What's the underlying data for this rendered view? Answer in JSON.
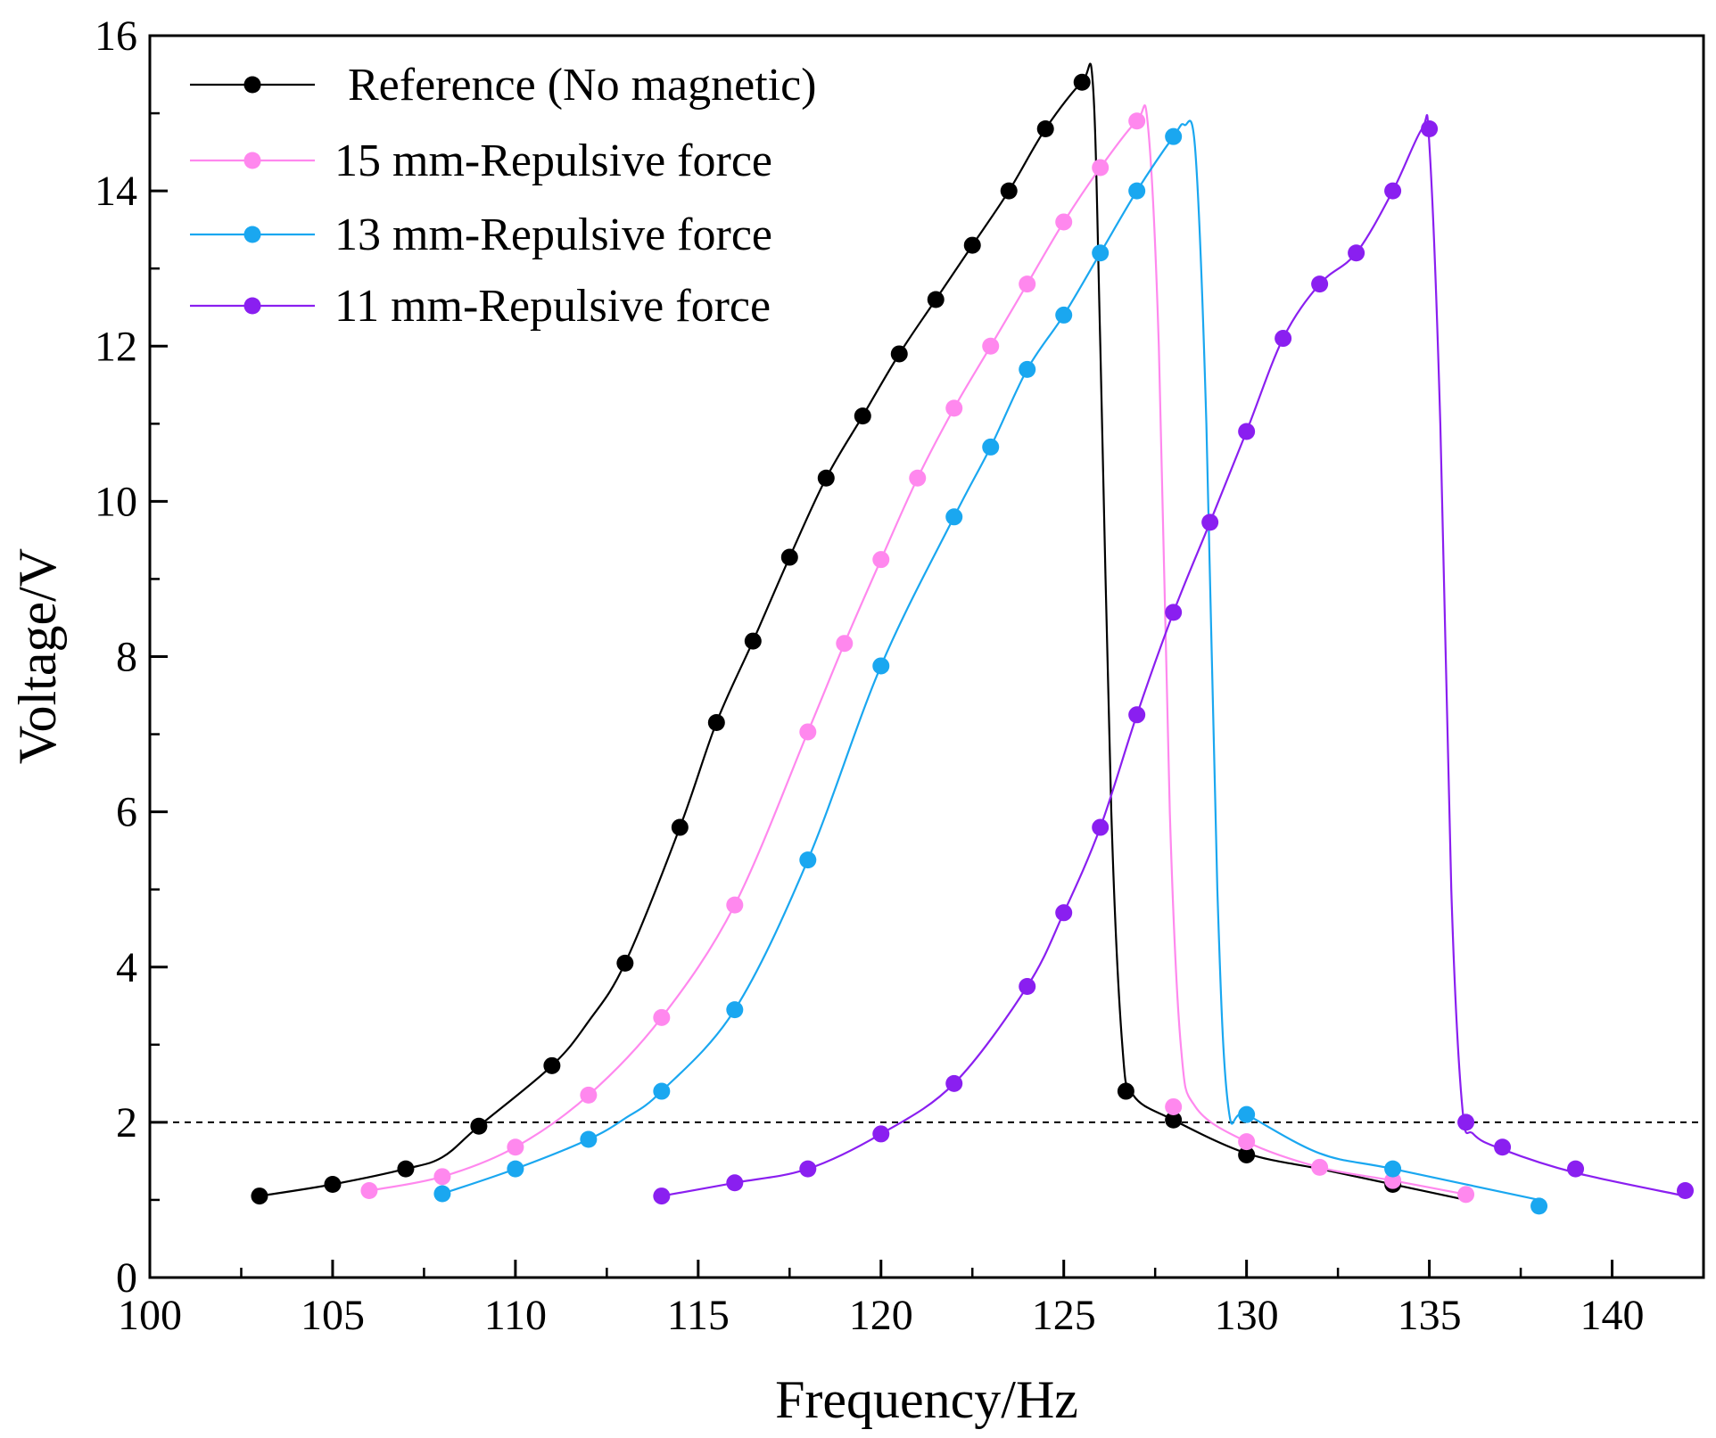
{
  "chart_data": {
    "type": "line",
    "xlabel": "Frequency/Hz",
    "ylabel": "Voltage/V",
    "xlim": [
      100,
      142.5
    ],
    "ylim": [
      0,
      16
    ],
    "x_ticks": [
      100,
      105,
      110,
      115,
      120,
      125,
      130,
      135,
      140
    ],
    "x_tick_labels": [
      "100",
      "105",
      "110",
      "115",
      "120",
      "125",
      "130",
      "135",
      "140"
    ],
    "y_ticks": [
      0,
      2,
      4,
      6,
      8,
      10,
      12,
      14,
      16
    ],
    "y_tick_labels": [
      "0",
      "2",
      "4",
      "6",
      "8",
      "10",
      "12",
      "14",
      "16"
    ],
    "grid": false,
    "legend_position": "top-left",
    "reference_line": {
      "y": 2,
      "style": "dashed",
      "color": "#000000"
    },
    "series": [
      {
        "name": "Reference (No magnetic)",
        "color": "#000000",
        "points": [
          [
            103,
            1.05
          ],
          [
            105,
            1.2
          ],
          [
            107,
            1.4
          ],
          [
            109,
            1.95
          ],
          [
            111,
            2.73
          ],
          [
            113,
            4.05
          ],
          [
            114.5,
            5.8
          ],
          [
            115.5,
            7.15
          ],
          [
            116.5,
            8.2
          ],
          [
            117.5,
            9.28
          ],
          [
            118.5,
            10.3
          ],
          [
            119.5,
            11.1
          ],
          [
            120.5,
            11.9
          ],
          [
            121.5,
            12.6
          ],
          [
            122.5,
            13.3
          ],
          [
            123.5,
            14.0
          ],
          [
            124.5,
            14.8
          ],
          [
            125.5,
            15.4
          ],
          [
            126.7,
            2.4
          ],
          [
            128,
            2.03
          ],
          [
            130,
            1.58
          ],
          [
            134,
            1.2
          ]
        ],
        "curve": [
          [
            103,
            1.05
          ],
          [
            105,
            1.2
          ],
          [
            107,
            1.4
          ],
          [
            108,
            1.55
          ],
          [
            109,
            1.95
          ],
          [
            111,
            2.73
          ],
          [
            112,
            3.3
          ],
          [
            113,
            4.05
          ],
          [
            114.5,
            5.8
          ],
          [
            115.5,
            7.15
          ],
          [
            116.5,
            8.2
          ],
          [
            117.5,
            9.28
          ],
          [
            118.5,
            10.3
          ],
          [
            119.5,
            11.1
          ],
          [
            120.5,
            11.9
          ],
          [
            121.5,
            12.6
          ],
          [
            122.5,
            13.3
          ],
          [
            123.5,
            14.0
          ],
          [
            124.5,
            14.8
          ],
          [
            125.5,
            15.4
          ],
          [
            125.8,
            15.35
          ],
          [
            126.0,
            12.0
          ],
          [
            126.3,
            6.0
          ],
          [
            126.6,
            3.0
          ],
          [
            126.9,
            2.35
          ],
          [
            128,
            2.03
          ],
          [
            130,
            1.6
          ],
          [
            132,
            1.4
          ],
          [
            134,
            1.2
          ],
          [
            136,
            1.0
          ]
        ]
      },
      {
        "name": "15 mm-Repulsive force",
        "color": "#ff88ee",
        "points": [
          [
            106,
            1.12
          ],
          [
            108,
            1.3
          ],
          [
            110,
            1.68
          ],
          [
            112,
            2.35
          ],
          [
            114,
            3.35
          ],
          [
            116,
            4.8
          ],
          [
            118,
            7.03
          ],
          [
            119,
            8.17
          ],
          [
            120,
            9.25
          ],
          [
            121,
            10.3
          ],
          [
            122,
            11.2
          ],
          [
            123,
            12.0
          ],
          [
            124,
            12.8
          ],
          [
            125,
            13.6
          ],
          [
            126,
            14.3
          ],
          [
            127,
            14.9
          ],
          [
            128,
            2.2
          ],
          [
            130,
            1.75
          ],
          [
            132,
            1.42
          ],
          [
            134,
            1.25
          ],
          [
            136,
            1.07
          ]
        ],
        "curve": [
          [
            106,
            1.12
          ],
          [
            108,
            1.3
          ],
          [
            110,
            1.68
          ],
          [
            112,
            2.35
          ],
          [
            114,
            3.35
          ],
          [
            116,
            4.8
          ],
          [
            118,
            7.03
          ],
          [
            119,
            8.17
          ],
          [
            120,
            9.25
          ],
          [
            121,
            10.3
          ],
          [
            122,
            11.2
          ],
          [
            123,
            12.0
          ],
          [
            124,
            12.8
          ],
          [
            125,
            13.6
          ],
          [
            126,
            14.3
          ],
          [
            127,
            14.9
          ],
          [
            127.3,
            14.85
          ],
          [
            127.6,
            12.0
          ],
          [
            127.9,
            6.0
          ],
          [
            128.2,
            3.0
          ],
          [
            128.6,
            2.2
          ],
          [
            130,
            1.75
          ],
          [
            132,
            1.42
          ],
          [
            134,
            1.25
          ],
          [
            136,
            1.07
          ]
        ]
      },
      {
        "name": "13 mm-Repulsive force",
        "color": "#1aa7f0",
        "points": [
          [
            108,
            1.08
          ],
          [
            110,
            1.4
          ],
          [
            112,
            1.78
          ],
          [
            114,
            2.4
          ],
          [
            116,
            3.45
          ],
          [
            118,
            5.38
          ],
          [
            120,
            7.88
          ],
          [
            122,
            9.8
          ],
          [
            123,
            10.7
          ],
          [
            124,
            11.7
          ],
          [
            125,
            12.4
          ],
          [
            126,
            13.2
          ],
          [
            127,
            14.0
          ],
          [
            128,
            14.7
          ],
          [
            130,
            2.1
          ],
          [
            134,
            1.4
          ],
          [
            138,
            0.92
          ]
        ],
        "curve": [
          [
            108,
            1.08
          ],
          [
            110,
            1.4
          ],
          [
            112,
            1.78
          ],
          [
            113,
            2.05
          ],
          [
            114,
            2.4
          ],
          [
            116,
            3.45
          ],
          [
            118,
            5.38
          ],
          [
            120,
            7.88
          ],
          [
            122,
            9.8
          ],
          [
            123,
            10.7
          ],
          [
            124,
            11.7
          ],
          [
            125,
            12.4
          ],
          [
            126,
            13.2
          ],
          [
            127,
            14.0
          ],
          [
            128,
            14.7
          ],
          [
            128.3,
            14.85
          ],
          [
            128.6,
            14.5
          ],
          [
            128.9,
            11.0
          ],
          [
            129.2,
            5.0
          ],
          [
            129.5,
            2.2
          ],
          [
            130,
            2.1
          ],
          [
            132,
            1.6
          ],
          [
            134,
            1.4
          ],
          [
            138,
            1.0
          ]
        ]
      },
      {
        "name": "11 mm-Repulsive force",
        "color": "#8a1ff0",
        "points": [
          [
            114,
            1.05
          ],
          [
            116,
            1.22
          ],
          [
            118,
            1.4
          ],
          [
            120,
            1.85
          ],
          [
            122,
            2.5
          ],
          [
            124,
            3.75
          ],
          [
            125,
            4.7
          ],
          [
            126,
            5.8
          ],
          [
            127,
            7.25
          ],
          [
            128,
            8.57
          ],
          [
            129,
            9.73
          ],
          [
            130,
            10.9
          ],
          [
            131,
            12.1
          ],
          [
            132,
            12.8
          ],
          [
            133,
            13.2
          ],
          [
            134,
            14.0
          ],
          [
            135,
            14.8
          ],
          [
            136,
            2.0
          ],
          [
            137,
            1.68
          ],
          [
            139,
            1.4
          ],
          [
            142,
            1.12
          ]
        ],
        "curve": [
          [
            114,
            1.05
          ],
          [
            116,
            1.22
          ],
          [
            118,
            1.4
          ],
          [
            120,
            1.85
          ],
          [
            122,
            2.5
          ],
          [
            124,
            3.75
          ],
          [
            125,
            4.7
          ],
          [
            126,
            5.8
          ],
          [
            127,
            7.25
          ],
          [
            128,
            8.57
          ],
          [
            129,
            9.73
          ],
          [
            130,
            10.9
          ],
          [
            131,
            12.1
          ],
          [
            132,
            12.8
          ],
          [
            133,
            13.2
          ],
          [
            134,
            14.0
          ],
          [
            134.8,
            14.8
          ],
          [
            135.0,
            14.6
          ],
          [
            135.3,
            11.0
          ],
          [
            135.6,
            5.0
          ],
          [
            135.9,
            2.2
          ],
          [
            136.2,
            1.85
          ],
          [
            137,
            1.65
          ],
          [
            139,
            1.35
          ],
          [
            142,
            1.05
          ]
        ]
      }
    ]
  }
}
